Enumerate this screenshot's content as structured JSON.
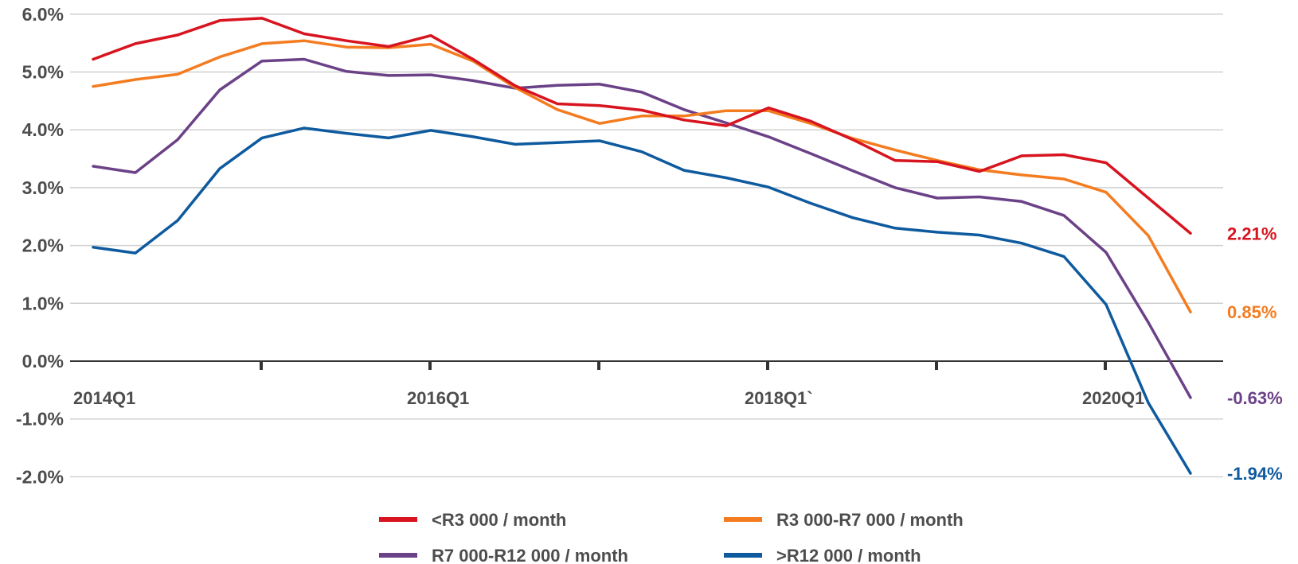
{
  "chart_data": {
    "type": "line",
    "title": "",
    "xlabel": "",
    "ylabel": "",
    "ylim": [
      -2.0,
      6.0
    ],
    "ytick_labels": [
      "6.0%",
      "5.0%",
      "4.0%",
      "3.0%",
      "2.0%",
      "1.0%",
      "0.0%",
      "-1.0%",
      "-2.0%"
    ],
    "yticks": [
      6,
      5,
      4,
      3,
      2,
      1,
      0,
      -1,
      -2
    ],
    "x_tick_labels": [
      "2014Q1",
      "2016Q1",
      "2018Q1`",
      "2020Q1"
    ],
    "x_tick_label_index": [
      0,
      8,
      16,
      24
    ],
    "x_tick_marks_index": [
      4,
      8,
      12,
      16,
      20,
      24
    ],
    "x": [
      "2014Q1",
      "2014Q2",
      "2014Q3",
      "2014Q4",
      "2015Q1",
      "2015Q2",
      "2015Q3",
      "2015Q4",
      "2016Q1",
      "2016Q2",
      "2016Q3",
      "2016Q4",
      "2017Q1",
      "2017Q2",
      "2017Q3",
      "2017Q4",
      "2018Q1",
      "2018Q2",
      "2018Q3",
      "2018Q4",
      "2019Q1",
      "2019Q2",
      "2019Q3",
      "2019Q4",
      "2020Q1",
      "2020Q2",
      "2020Q3"
    ],
    "grid": true,
    "legend_position": "bottom",
    "series": [
      {
        "name": "<R3 000 / month",
        "color": "#d7141f",
        "end_label": "2.21%",
        "values": [
          5.22,
          5.49,
          5.64,
          5.89,
          5.93,
          5.66,
          5.54,
          5.44,
          5.63,
          5.22,
          4.76,
          4.45,
          4.42,
          4.34,
          4.17,
          4.07,
          4.38,
          4.15,
          3.83,
          3.47,
          3.45,
          3.28,
          3.55,
          3.57,
          3.43,
          2.82,
          2.21
        ]
      },
      {
        "name": "R3 000-R7 000 / month",
        "color": "#f47c20",
        "end_label": "0.85%",
        "values": [
          4.75,
          4.87,
          4.96,
          5.26,
          5.49,
          5.54,
          5.43,
          5.42,
          5.48,
          5.19,
          4.73,
          4.35,
          4.11,
          4.24,
          4.24,
          4.33,
          4.33,
          4.11,
          3.85,
          3.65,
          3.47,
          3.31,
          3.22,
          3.15,
          2.92,
          2.17,
          0.85
        ]
      },
      {
        "name": "R7 000-R12 000 / month",
        "color": "#6b4187",
        "end_label": "-0.63%",
        "values": [
          3.37,
          3.26,
          3.83,
          4.69,
          5.19,
          5.22,
          5.01,
          4.94,
          4.95,
          4.85,
          4.72,
          4.77,
          4.79,
          4.65,
          4.35,
          4.12,
          3.88,
          3.59,
          3.29,
          3.0,
          2.82,
          2.84,
          2.76,
          2.52,
          1.88,
          0.67,
          -0.63
        ]
      },
      {
        "name": ">R12 000 / month",
        "color": "#0e5a9e",
        "end_label": "-1.94%",
        "values": [
          1.97,
          1.87,
          2.43,
          3.33,
          3.86,
          4.03,
          3.94,
          3.86,
          3.99,
          3.88,
          3.75,
          3.78,
          3.81,
          3.62,
          3.3,
          3.17,
          3.01,
          2.73,
          2.48,
          2.3,
          2.23,
          2.18,
          2.04,
          1.81,
          0.98,
          -0.72,
          -1.94
        ]
      }
    ]
  }
}
